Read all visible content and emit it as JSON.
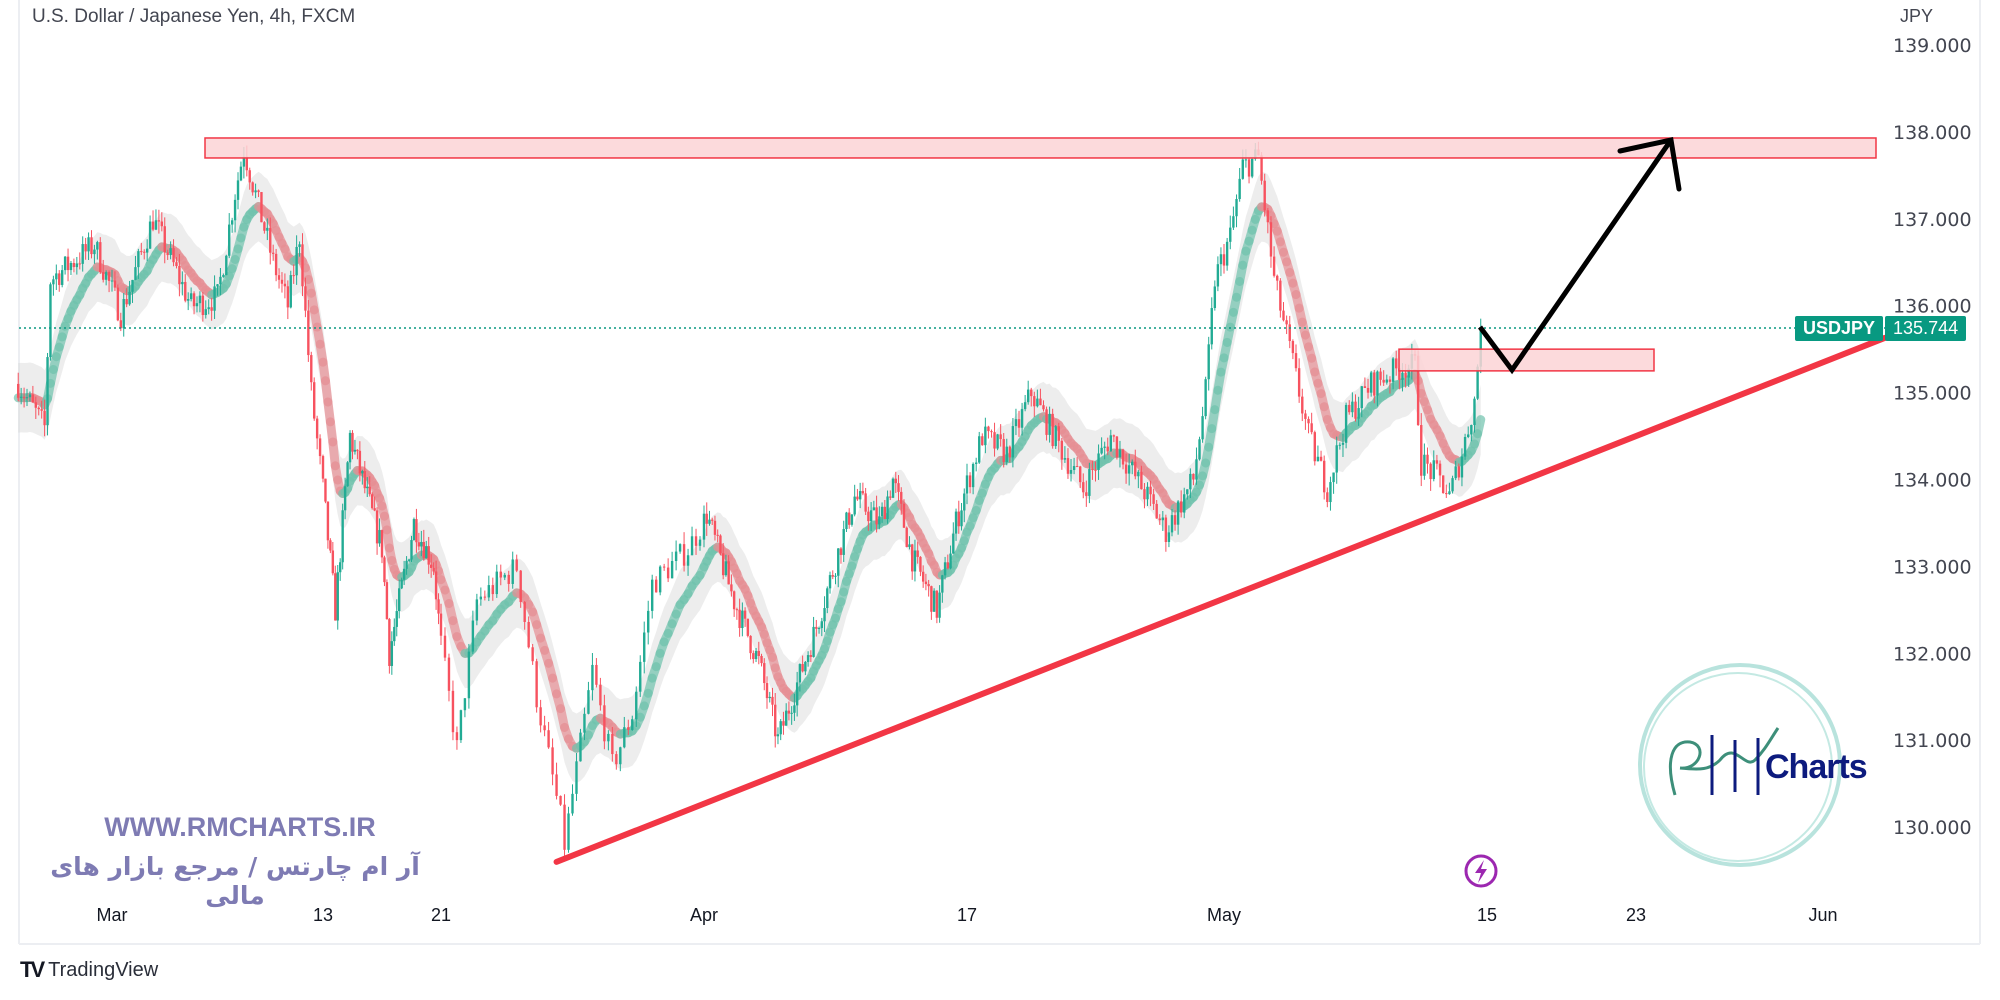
{
  "header": {
    "title": "U.S. Dollar / Japanese Yen, 4h, FXCM"
  },
  "price_tag": {
    "symbol": "USDJPY",
    "price": "135.744"
  },
  "watermark": {
    "site": "WWW.RMCHARTS.IR",
    "tagline": "آر ام چارتس / مرجع بازار های مالی",
    "logo_text": "Charts",
    "logo_letters": "RM"
  },
  "footer": {
    "brand": "TradingView",
    "logo": "TV"
  },
  "icons": {
    "alert": "lightning-icon"
  },
  "colors": {
    "up": "#22ab94",
    "down": "#f7525f",
    "zone_fill": "#fbd3d6",
    "zone_border": "#f23645",
    "trendline": "#f23645",
    "arrow": "#000000",
    "last_price": "#089981"
  },
  "chart_data": {
    "type": "candlestick",
    "symbol": "USDJPY",
    "timeframe": "4h",
    "yaxis": {
      "unit": "JPY",
      "range": [
        129.0,
        139.2
      ],
      "ticks": [
        "139.000",
        "138.000",
        "137.000",
        "136.000",
        "135.000",
        "134.000",
        "133.000",
        "132.000",
        "131.000",
        "130.000"
      ]
    },
    "xaxis": {
      "ticks": [
        "Mar",
        "13",
        "21",
        "Apr",
        "17",
        "May",
        "15",
        "23",
        "Jun"
      ]
    },
    "last_price": 135.744,
    "price_path": [
      [
        "02-23 16:00",
        135.1
      ],
      [
        "02-25 04:00",
        134.6
      ],
      [
        "02-25 12:00",
        136.3
      ],
      [
        "02-28 00:00",
        136.7
      ],
      [
        "03-01 12:00",
        135.9
      ],
      [
        "03-03 08:00",
        137.0
      ],
      [
        "03-05 12:00",
        136.0
      ],
      [
        "03-07 00:00",
        136.1
      ],
      [
        "03-08 00:00",
        137.3
      ],
      [
        "03-08 12:00",
        137.8
      ],
      [
        "03-10 04:00",
        136.5
      ],
      [
        "03-11 00:00",
        136.0
      ],
      [
        "03-11 16:00",
        136.8
      ],
      [
        "03-12 08:00",
        135.0
      ],
      [
        "03-13 20:00",
        132.5
      ],
      [
        "03-14 20:00",
        134.5
      ],
      [
        "03-17 00:00",
        133.2
      ],
      [
        "03-17 12:00",
        132.0
      ],
      [
        "03-19 04:00",
        133.5
      ],
      [
        "03-20 12:00",
        133.0
      ],
      [
        "03-21 16:00",
        130.9
      ],
      [
        "03-22 12:00",
        132.6
      ],
      [
        "03-24 04:00",
        133.0
      ],
      [
        "03-25 00:00",
        131.5
      ],
      [
        "03-26 00:00",
        130.1
      ],
      [
        "03-26 04:00",
        129.8
      ],
      [
        "03-27 08:00",
        131.8
      ],
      [
        "03-28 04:00",
        130.7
      ],
      [
        "03-29 00:00",
        131.3
      ],
      [
        "03-29 20:00",
        132.8
      ],
      [
        "03-31 08:00",
        133.2
      ],
      [
        "04-01 04:00",
        133.6
      ],
      [
        "04-02 20:00",
        132.6
      ],
      [
        "04-04 08:00",
        131.9
      ],
      [
        "04-05 12:00",
        131.0
      ],
      [
        "04-07 20:00",
        132.3
      ],
      [
        "04-10 04:00",
        133.8
      ],
      [
        "04-11 16:00",
        133.5
      ],
      [
        "04-12 12:00",
        134.0
      ],
      [
        "04-13 16:00",
        133.1
      ],
      [
        "04-15 04:00",
        132.5
      ],
      [
        "04-16 08:00",
        133.5
      ],
      [
        "04-17 20:00",
        134.5
      ],
      [
        "04-19 04:00",
        134.3
      ],
      [
        "04-20 12:00",
        135.0
      ],
      [
        "04-22 00:00",
        134.4
      ],
      [
        "04-23 08:00",
        133.9
      ],
      [
        "04-24 20:00",
        134.5
      ],
      [
        "04-26 20:00",
        133.8
      ],
      [
        "04-27 20:00",
        133.4
      ],
      [
        "04-29 08:00",
        134.0
      ],
      [
        "04-30 00:00",
        135.0
      ],
      [
        "04-30 12:00",
        136.3
      ],
      [
        "05-01 08:00",
        136.8
      ],
      [
        "05-02 00:00",
        137.6
      ],
      [
        "05-02 20:00",
        137.7
      ],
      [
        "05-03 16:00",
        136.3
      ],
      [
        "05-04 12:00",
        135.5
      ],
      [
        "05-05 12:00",
        134.5
      ],
      [
        "05-06 12:00",
        133.9
      ],
      [
        "05-07 12:00",
        134.7
      ],
      [
        "05-08 20:00",
        135.1
      ],
      [
        "05-10 12:00",
        135.3
      ],
      [
        "05-11 04:00",
        135.3
      ],
      [
        "05-11 12:00",
        134.2
      ],
      [
        "05-12 12:00",
        134.0
      ],
      [
        "05-13 00:00",
        133.8
      ],
      [
        "05-13 16:00",
        134.3
      ],
      [
        "05-14 08:00",
        134.9
      ],
      [
        "05-14 16:00",
        135.744
      ]
    ],
    "annotations": {
      "resistance_zone": {
        "from": 137.7,
        "to": 137.93
      },
      "retest_zone": {
        "from": 135.25,
        "to": 135.5
      },
      "trendline": {
        "start": [
          "03-25 20:00",
          129.6
        ],
        "end_price": 135.63
      },
      "projection": "pullback to retest zone, then rise to resistance zone"
    }
  }
}
